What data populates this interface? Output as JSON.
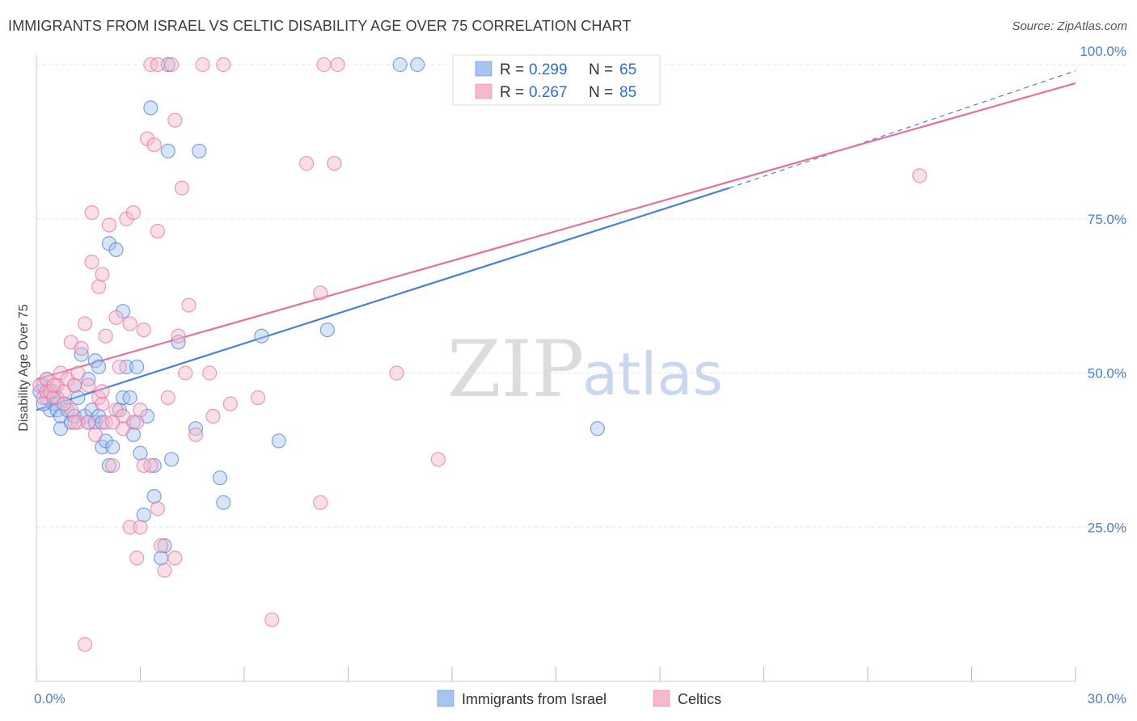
{
  "title": "IMMIGRANTS FROM ISRAEL VS CELTIC DISABILITY AGE OVER 75 CORRELATION CHART",
  "source": "Source: ZipAtlas.com",
  "watermark": {
    "zip": "ZIP",
    "atlas": "atlas"
  },
  "colors": {
    "blue": "#4a7fd6",
    "pink": "#e8709a",
    "blue_fill": "#a8c5f0",
    "pink_fill": "#f6b8cc",
    "tick": "#4a7fc8"
  },
  "chart_data": {
    "type": "scatter",
    "title": "IMMIGRANTS FROM ISRAEL VS CELTIC DISABILITY AGE OVER 75 CORRELATION CHART",
    "xlabel": "",
    "ylabel": "Disability Age Over 75",
    "xlim": [
      0,
      30
    ],
    "ylim": [
      0,
      100
    ],
    "x_ticks": [
      "0.0%",
      "30.0%"
    ],
    "y_ticks": [
      "25.0%",
      "50.0%",
      "75.0%",
      "100.0%"
    ],
    "legend": [
      {
        "name": "Immigrants from Israel",
        "R": "0.299",
        "N": "65"
      },
      {
        "name": "Celtics",
        "R": "0.267",
        "N": "85"
      }
    ],
    "legend_labels": {
      "r": "R =",
      "n": "N ="
    },
    "series": [
      {
        "name": "Immigrants from Israel",
        "trend": {
          "x0": 0,
          "y0": 44,
          "x1": 20,
          "y1": 80,
          "dash_x1": 30,
          "dash_y1": 99
        },
        "points": [
          [
            0.1,
            47
          ],
          [
            0.2,
            48
          ],
          [
            0.3,
            46
          ],
          [
            0.3,
            49
          ],
          [
            0.4,
            44
          ],
          [
            0.5,
            45
          ],
          [
            0.5,
            47
          ],
          [
            0.6,
            46
          ],
          [
            0.6,
            44
          ],
          [
            0.7,
            43
          ],
          [
            0.7,
            41
          ],
          [
            0.8,
            45
          ],
          [
            0.9,
            44
          ],
          [
            1.0,
            42
          ],
          [
            1.1,
            48
          ],
          [
            1.1,
            43
          ],
          [
            1.2,
            46
          ],
          [
            1.3,
            53
          ],
          [
            1.4,
            43
          ],
          [
            1.5,
            42
          ],
          [
            1.5,
            49
          ],
          [
            1.6,
            44
          ],
          [
            1.7,
            52
          ],
          [
            1.7,
            42
          ],
          [
            1.8,
            51
          ],
          [
            1.8,
            43
          ],
          [
            1.9,
            38
          ],
          [
            1.9,
            42
          ],
          [
            2.0,
            39
          ],
          [
            2.1,
            35
          ],
          [
            2.1,
            71
          ],
          [
            2.2,
            38
          ],
          [
            2.3,
            70
          ],
          [
            2.4,
            44
          ],
          [
            2.5,
            46
          ],
          [
            2.5,
            60
          ],
          [
            2.6,
            51
          ],
          [
            2.7,
            46
          ],
          [
            2.8,
            42
          ],
          [
            2.8,
            40
          ],
          [
            2.9,
            51
          ],
          [
            3.0,
            37
          ],
          [
            3.1,
            27
          ],
          [
            3.2,
            43
          ],
          [
            3.3,
            93
          ],
          [
            3.4,
            35
          ],
          [
            3.4,
            30
          ],
          [
            3.6,
            20
          ],
          [
            3.7,
            22
          ],
          [
            3.8,
            86
          ],
          [
            3.9,
            36
          ],
          [
            3.8,
            100
          ],
          [
            4.1,
            55
          ],
          [
            4.6,
            41
          ],
          [
            4.7,
            86
          ],
          [
            5.3,
            33
          ],
          [
            5.4,
            29
          ],
          [
            6.5,
            56
          ],
          [
            7.0,
            39
          ],
          [
            8.4,
            57
          ],
          [
            10.5,
            100
          ],
          [
            11.0,
            100
          ],
          [
            16.2,
            41
          ],
          [
            0.2,
            45
          ],
          [
            0.4,
            47
          ]
        ]
      },
      {
        "name": "Celtics",
        "trend": {
          "x0": 0,
          "y0": 49,
          "x1": 30,
          "y1": 97
        },
        "points": [
          [
            0.1,
            48
          ],
          [
            0.2,
            46
          ],
          [
            0.3,
            47
          ],
          [
            0.3,
            49
          ],
          [
            0.4,
            47
          ],
          [
            0.5,
            46
          ],
          [
            0.6,
            48
          ],
          [
            0.7,
            50
          ],
          [
            0.8,
            47
          ],
          [
            0.9,
            49
          ],
          [
            1.0,
            44
          ],
          [
            1.0,
            55
          ],
          [
            1.1,
            48
          ],
          [
            1.2,
            50
          ],
          [
            1.2,
            42
          ],
          [
            1.3,
            54
          ],
          [
            1.4,
            58
          ],
          [
            1.5,
            48
          ],
          [
            1.5,
            42
          ],
          [
            1.6,
            76
          ],
          [
            1.6,
            68
          ],
          [
            1.7,
            40
          ],
          [
            1.8,
            64
          ],
          [
            1.8,
            46
          ],
          [
            1.9,
            45
          ],
          [
            1.9,
            66
          ],
          [
            2.0,
            56
          ],
          [
            2.0,
            42
          ],
          [
            2.1,
            74
          ],
          [
            2.2,
            35
          ],
          [
            2.3,
            59
          ],
          [
            2.3,
            44
          ],
          [
            2.4,
            51
          ],
          [
            2.5,
            43
          ],
          [
            2.5,
            41
          ],
          [
            2.6,
            75
          ],
          [
            2.7,
            25
          ],
          [
            2.7,
            58
          ],
          [
            2.8,
            76
          ],
          [
            2.9,
            20
          ],
          [
            3.0,
            44
          ],
          [
            3.0,
            25
          ],
          [
            3.1,
            57
          ],
          [
            3.1,
            35
          ],
          [
            3.2,
            88
          ],
          [
            3.3,
            35
          ],
          [
            3.4,
            87
          ],
          [
            3.5,
            73
          ],
          [
            3.5,
            28
          ],
          [
            3.6,
            22
          ],
          [
            3.7,
            18
          ],
          [
            3.8,
            46
          ],
          [
            3.9,
            100
          ],
          [
            4.0,
            20
          ],
          [
            4.0,
            91
          ],
          [
            4.1,
            56
          ],
          [
            4.2,
            80
          ],
          [
            4.3,
            50
          ],
          [
            4.4,
            61
          ],
          [
            4.6,
            40
          ],
          [
            4.8,
            100
          ],
          [
            5.0,
            50
          ],
          [
            5.1,
            43
          ],
          [
            5.4,
            100
          ],
          [
            5.6,
            45
          ],
          [
            6.4,
            46
          ],
          [
            6.8,
            10
          ],
          [
            7.8,
            84
          ],
          [
            8.2,
            63
          ],
          [
            8.2,
            29
          ],
          [
            8.3,
            100
          ],
          [
            8.6,
            84
          ],
          [
            8.7,
            100
          ],
          [
            10.4,
            50
          ],
          [
            11.6,
            36
          ],
          [
            25.5,
            82
          ],
          [
            1.4,
            6
          ],
          [
            0.5,
            48
          ],
          [
            0.8,
            45
          ],
          [
            1.1,
            42
          ],
          [
            2.2,
            42
          ],
          [
            2.9,
            42
          ],
          [
            3.3,
            100
          ],
          [
            3.5,
            100
          ],
          [
            1.9,
            47
          ]
        ]
      }
    ]
  }
}
